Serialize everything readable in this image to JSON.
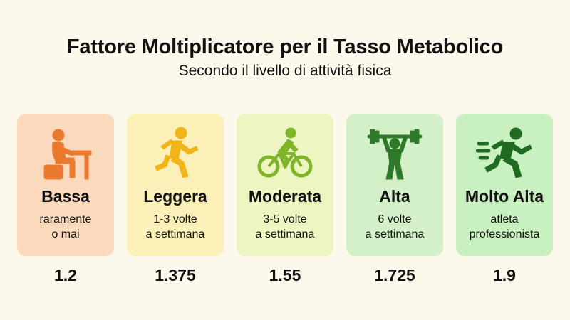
{
  "header": {
    "title": "Fattore Moltiplicatore per il Tasso Metabolico",
    "subtitle": "Secondo il livello di attività fisica"
  },
  "levels": [
    {
      "name": "Bassa",
      "desc_line1": "raramente",
      "desc_line2": "o mai",
      "factor": "1.2",
      "icon": "person-sitting-at-desk-icon",
      "card_color": "#fbd9bd",
      "icon_color": "#ec7a2e"
    },
    {
      "name": "Leggera",
      "desc_line1": "1-3 volte",
      "desc_line2": "a settimana",
      "factor": "1.375",
      "icon": "person-walking-icon",
      "card_color": "#fbf0b8",
      "icon_color": "#f1b51a"
    },
    {
      "name": "Moderata",
      "desc_line1": "3-5 volte",
      "desc_line2": "a settimana",
      "factor": "1.55",
      "icon": "cyclist-icon",
      "card_color": "#edf6c2",
      "icon_color": "#7fb428"
    },
    {
      "name": "Alta",
      "desc_line1": "6 volte",
      "desc_line2": "a settimana",
      "factor": "1.725",
      "icon": "weightlifter-icon",
      "card_color": "#d3f0c8",
      "icon_color": "#2f7a2a"
    },
    {
      "name": "Molto Alta",
      "desc_line1": "atleta",
      "desc_line2": "professionista",
      "factor": "1.9",
      "icon": "runner-sprinting-icon",
      "card_color": "#c8f0c0",
      "icon_color": "#1f6b22"
    }
  ]
}
